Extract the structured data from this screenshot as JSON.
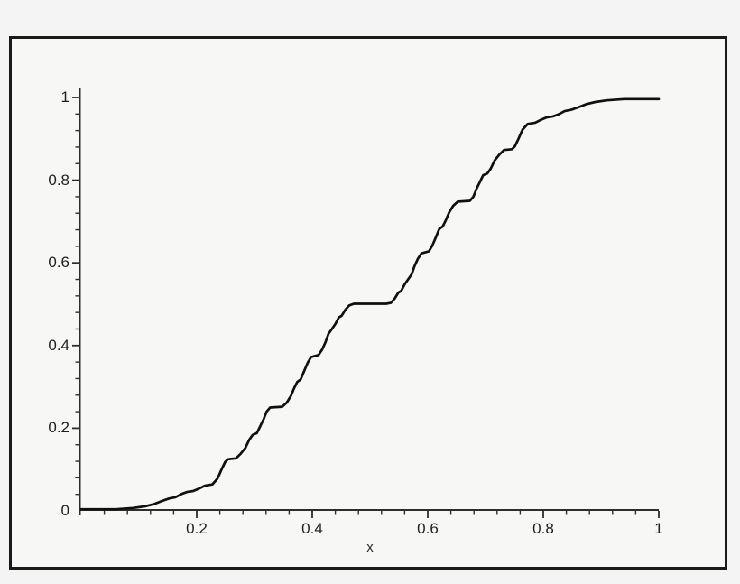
{
  "window": {
    "background_color": "#f4f4f5",
    "frame_border_color": "#1a1a1a",
    "frame_fill_color": "#f7f7f6"
  },
  "chart_data": {
    "type": "line",
    "title": "",
    "xlabel": "x",
    "ylabel": "",
    "xlim": [
      0,
      1
    ],
    "ylim": [
      0,
      1
    ],
    "grid": false,
    "legend": null,
    "axis_color": "#2e2e2e",
    "tick_label_color": "#1f1f1f",
    "x_ticks": [
      {
        "value": 0.2,
        "label": "0.2"
      },
      {
        "value": 0.4,
        "label": "0.4"
      },
      {
        "value": 0.6,
        "label": "0.6"
      },
      {
        "value": 0.8,
        "label": "0.8"
      },
      {
        "value": 1.0,
        "label": "1"
      }
    ],
    "y_ticks": [
      {
        "value": 0.0,
        "label": "0"
      },
      {
        "value": 0.2,
        "label": "0.2"
      },
      {
        "value": 0.4,
        "label": "0.4"
      },
      {
        "value": 0.6,
        "label": "0.6"
      },
      {
        "value": 0.8,
        "label": "0.8"
      },
      {
        "value": 1.0,
        "label": "1"
      }
    ],
    "minor_ticks_per_major_interval": 4,
    "series": [
      {
        "name": "staircase-cdf-curve",
        "color": "#101010",
        "line_width": 2.7,
        "points": [
          [
            0.0,
            0.004
          ],
          [
            0.06,
            0.004
          ],
          [
            0.09,
            0.007
          ],
          [
            0.11,
            0.011
          ],
          [
            0.125,
            0.016
          ],
          [
            0.14,
            0.024
          ],
          [
            0.152,
            0.03
          ],
          [
            0.163,
            0.033
          ],
          [
            0.174,
            0.041
          ],
          [
            0.184,
            0.046
          ],
          [
            0.194,
            0.048
          ],
          [
            0.204,
            0.054
          ],
          [
            0.214,
            0.061
          ],
          [
            0.227,
            0.064
          ],
          [
            0.236,
            0.078
          ],
          [
            0.243,
            0.1
          ],
          [
            0.249,
            0.118
          ],
          [
            0.254,
            0.125
          ],
          [
            0.268,
            0.127
          ],
          [
            0.276,
            0.138
          ],
          [
            0.284,
            0.152
          ],
          [
            0.291,
            0.172
          ],
          [
            0.297,
            0.184
          ],
          [
            0.304,
            0.188
          ],
          [
            0.31,
            0.205
          ],
          [
            0.316,
            0.222
          ],
          [
            0.321,
            0.24
          ],
          [
            0.327,
            0.25
          ],
          [
            0.348,
            0.252
          ],
          [
            0.356,
            0.262
          ],
          [
            0.363,
            0.278
          ],
          [
            0.369,
            0.298
          ],
          [
            0.374,
            0.312
          ],
          [
            0.38,
            0.318
          ],
          [
            0.386,
            0.338
          ],
          [
            0.392,
            0.358
          ],
          [
            0.398,
            0.372
          ],
          [
            0.411,
            0.377
          ],
          [
            0.417,
            0.39
          ],
          [
            0.423,
            0.408
          ],
          [
            0.428,
            0.428
          ],
          [
            0.434,
            0.44
          ],
          [
            0.44,
            0.452
          ],
          [
            0.446,
            0.468
          ],
          [
            0.451,
            0.472
          ],
          [
            0.457,
            0.486
          ],
          [
            0.464,
            0.497
          ],
          [
            0.472,
            0.501
          ],
          [
            0.528,
            0.501
          ],
          [
            0.536,
            0.503
          ],
          [
            0.543,
            0.514
          ],
          [
            0.549,
            0.528
          ],
          [
            0.554,
            0.532
          ],
          [
            0.56,
            0.548
          ],
          [
            0.566,
            0.56
          ],
          [
            0.572,
            0.572
          ],
          [
            0.577,
            0.592
          ],
          [
            0.583,
            0.61
          ],
          [
            0.589,
            0.623
          ],
          [
            0.602,
            0.628
          ],
          [
            0.608,
            0.642
          ],
          [
            0.614,
            0.662
          ],
          [
            0.62,
            0.682
          ],
          [
            0.626,
            0.688
          ],
          [
            0.631,
            0.702
          ],
          [
            0.637,
            0.722
          ],
          [
            0.644,
            0.738
          ],
          [
            0.652,
            0.748
          ],
          [
            0.673,
            0.75
          ],
          [
            0.679,
            0.76
          ],
          [
            0.684,
            0.778
          ],
          [
            0.69,
            0.795
          ],
          [
            0.696,
            0.812
          ],
          [
            0.703,
            0.816
          ],
          [
            0.709,
            0.828
          ],
          [
            0.716,
            0.848
          ],
          [
            0.724,
            0.862
          ],
          [
            0.732,
            0.873
          ],
          [
            0.746,
            0.875
          ],
          [
            0.751,
            0.882
          ],
          [
            0.757,
            0.9
          ],
          [
            0.764,
            0.922
          ],
          [
            0.773,
            0.936
          ],
          [
            0.786,
            0.939
          ],
          [
            0.796,
            0.946
          ],
          [
            0.806,
            0.952
          ],
          [
            0.816,
            0.954
          ],
          [
            0.826,
            0.959
          ],
          [
            0.837,
            0.967
          ],
          [
            0.848,
            0.97
          ],
          [
            0.86,
            0.976
          ],
          [
            0.875,
            0.984
          ],
          [
            0.89,
            0.989
          ],
          [
            0.91,
            0.993
          ],
          [
            0.94,
            0.996
          ],
          [
            1.0,
            0.996
          ]
        ]
      }
    ]
  }
}
